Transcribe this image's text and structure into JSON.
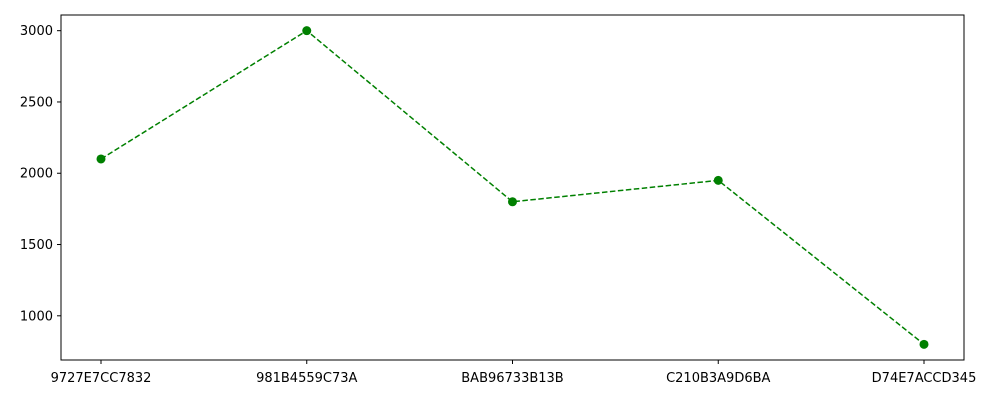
{
  "chart_data": {
    "type": "line",
    "title": "",
    "xlabel": "",
    "ylabel": "",
    "categories": [
      "9727E7CC7832",
      "981B4559C73A",
      "BAB96733B13B",
      "C210B3A9D6BA",
      "D74E7ACCD345"
    ],
    "series": [
      {
        "values": [
          2100,
          3000,
          1800,
          1950,
          800
        ],
        "color": "#008000",
        "line_style": "dashed",
        "marker": "circle"
      }
    ],
    "ylim": [
      690,
      3110
    ],
    "yticks": [
      1000,
      1500,
      2000,
      2500,
      3000
    ],
    "grid": false,
    "legend": "none"
  }
}
